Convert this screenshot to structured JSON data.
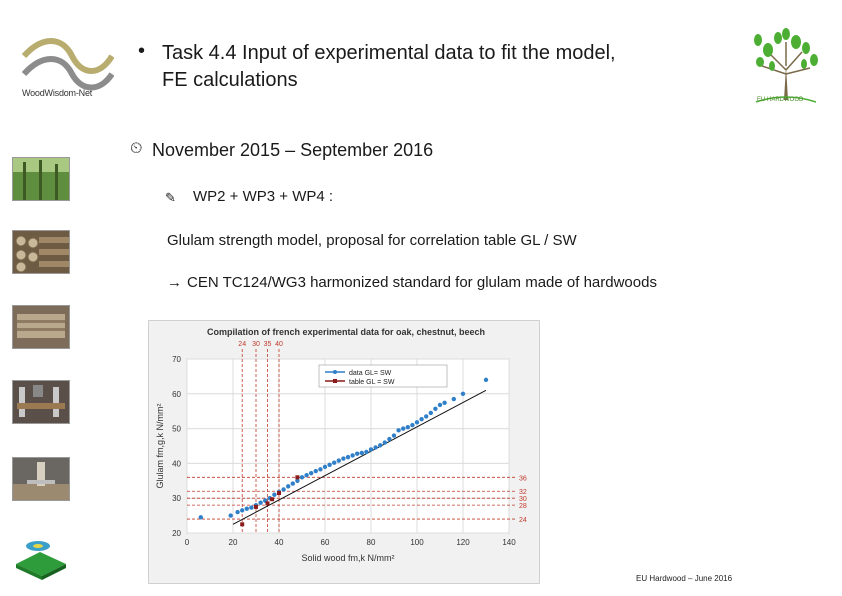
{
  "title": {
    "bullet": "•",
    "line1": "Task 4.4 Input of experimental data to fit the model,",
    "line2": "FE calculations"
  },
  "logos": {
    "left_text": "WoodWisdom-Net",
    "right_text": "EU HARDWOOD"
  },
  "date_line": {
    "icon": "clock-icon",
    "text": "November 2015 – September 2016"
  },
  "wp_line": {
    "icon": "pen-icon",
    "text": "WP2 + WP3 + WP4 :"
  },
  "glulam_line": "Glulam strength model, proposal for correlation table GL / SW",
  "cen_line": {
    "icon": "arrow-icon",
    "arrow": "→",
    "text": "CEN TC124/WG3 harmonized standard for glulam made of hardwoods"
  },
  "footer": "EU Hardwood – June 2016",
  "colors": {
    "data_series": "#2f7fc9",
    "table_series": "#8b1a1a",
    "ref_lines": "#c0392b",
    "fit_line": "#111111"
  },
  "chart_data": {
    "type": "scatter",
    "title": "Compilation of french experimental data for oak, chestnut, beech",
    "xlabel": "Solid wood  fm,k  N/mm²",
    "ylabel": "Glulam  fm,g,k  N/mm²",
    "xlim": [
      0,
      140
    ],
    "ylim": [
      20,
      70
    ],
    "xticks": [
      0,
      20,
      40,
      60,
      80,
      100,
      120,
      140
    ],
    "yticks": [
      20,
      30,
      40,
      50,
      60,
      70
    ],
    "grid": true,
    "legend_position": "top-center",
    "series": [
      {
        "name": "data GL= SW",
        "style": "markers",
        "points": [
          [
            6,
            24.5
          ],
          [
            19,
            25
          ],
          [
            22,
            26
          ],
          [
            24,
            26.5
          ],
          [
            26,
            27
          ],
          [
            28,
            27.3
          ],
          [
            30,
            28
          ],
          [
            32,
            28.7
          ],
          [
            34,
            29.3
          ],
          [
            36,
            30
          ],
          [
            38,
            31
          ],
          [
            40,
            31.8
          ],
          [
            42,
            32.5
          ],
          [
            44,
            33.4
          ],
          [
            46,
            34.2
          ],
          [
            48,
            35
          ],
          [
            50,
            36
          ],
          [
            52,
            36.6
          ],
          [
            54,
            37.2
          ],
          [
            56,
            37.8
          ],
          [
            58,
            38.3
          ],
          [
            60,
            39
          ],
          [
            62,
            39.6
          ],
          [
            64,
            40.2
          ],
          [
            66,
            40.8
          ],
          [
            68,
            41.4
          ],
          [
            70,
            41.8
          ],
          [
            72,
            42.3
          ],
          [
            74,
            42.8
          ],
          [
            76,
            43
          ],
          [
            78,
            43.3
          ],
          [
            80,
            44
          ],
          [
            82,
            44.6
          ],
          [
            84,
            45.2
          ],
          [
            86,
            46
          ],
          [
            88,
            47
          ],
          [
            90,
            48
          ],
          [
            92,
            49.5
          ],
          [
            94,
            50
          ],
          [
            96,
            50.4
          ],
          [
            98,
            51
          ],
          [
            100,
            51.8
          ],
          [
            102,
            52.7
          ],
          [
            104,
            53.5
          ],
          [
            106,
            54.5
          ],
          [
            108,
            55.7
          ],
          [
            110,
            56.8
          ],
          [
            112,
            57.4
          ],
          [
            116,
            58.5
          ],
          [
            120,
            60
          ],
          [
            130,
            64
          ]
        ]
      },
      {
        "name": "table GL = SW",
        "style": "markers",
        "points": [
          [
            24,
            22.5
          ],
          [
            30,
            27.5
          ],
          [
            35,
            28.5
          ],
          [
            37,
            29.7
          ],
          [
            40,
            31.5
          ],
          [
            48,
            36
          ]
        ]
      }
    ],
    "fit_line": {
      "x": [
        20,
        130
      ],
      "y": [
        22.5,
        61
      ]
    },
    "reference_lines": {
      "vertical": {
        "labels": [
          "24",
          "30",
          "35",
          "40"
        ],
        "values": [
          24,
          30,
          35,
          40
        ]
      },
      "horizontal": {
        "labels": [
          "36",
          "32",
          "30",
          "28",
          "24"
        ],
        "values": [
          36,
          32,
          30,
          28,
          24
        ]
      }
    }
  }
}
